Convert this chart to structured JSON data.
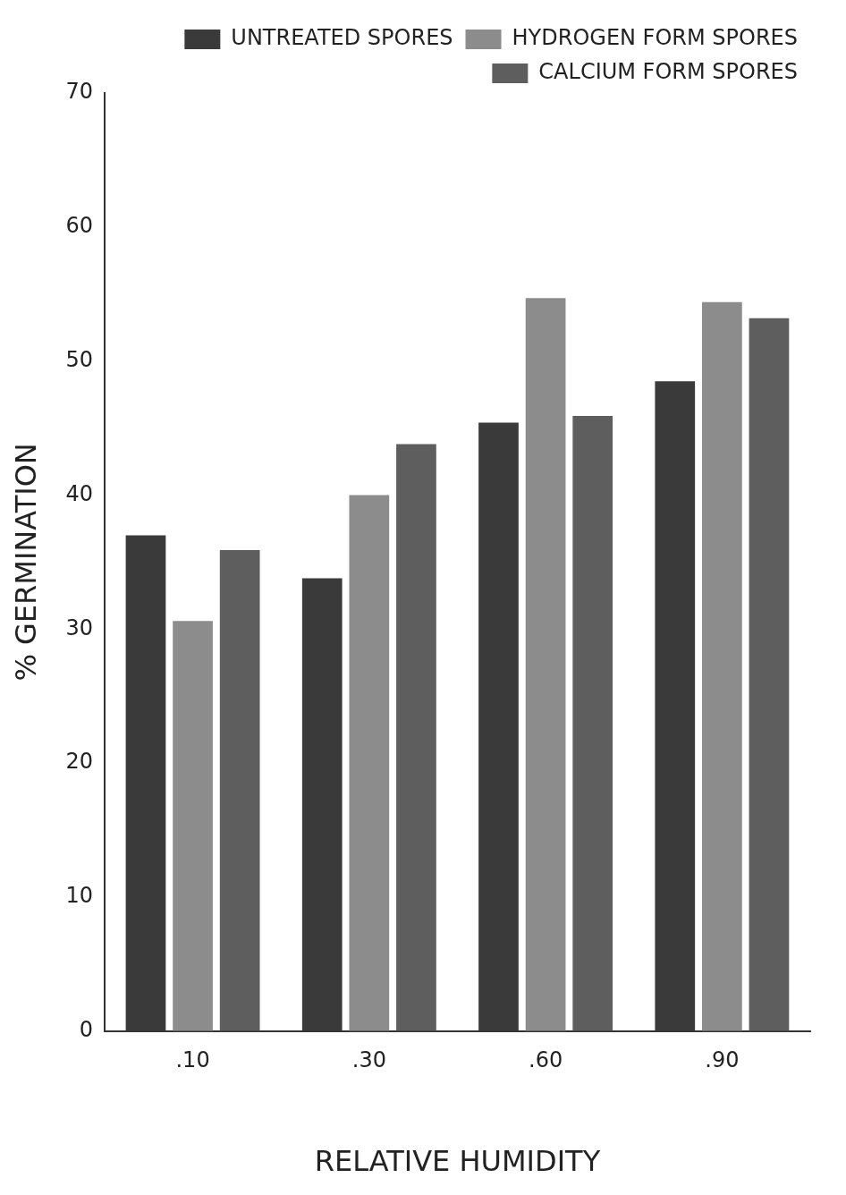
{
  "chart_data": {
    "type": "bar",
    "xlabel": "RELATIVE HUMIDITY",
    "ylabel": "% GERMINATION",
    "categories": [
      ".10",
      ".30",
      ".60",
      ".90"
    ],
    "series": [
      {
        "name": "UNTREATED SPORES",
        "color": "#3a3a3a",
        "values": [
          37,
          33.8,
          45.4,
          48.5
        ]
      },
      {
        "name": "HYDROGEN FORM SPORES",
        "color": "#8c8c8c",
        "values": [
          30.6,
          40,
          54.7,
          54.4
        ]
      },
      {
        "name": "CALCIUM FORM SPORES",
        "color": "#5e5e5e",
        "values": [
          35.9,
          43.8,
          45.9,
          53.2
        ]
      }
    ],
    "ylim": [
      0,
      70
    ],
    "yticks": [
      0,
      10,
      20,
      30,
      40,
      50,
      60,
      70
    ],
    "grid": false,
    "legend": "top right"
  }
}
